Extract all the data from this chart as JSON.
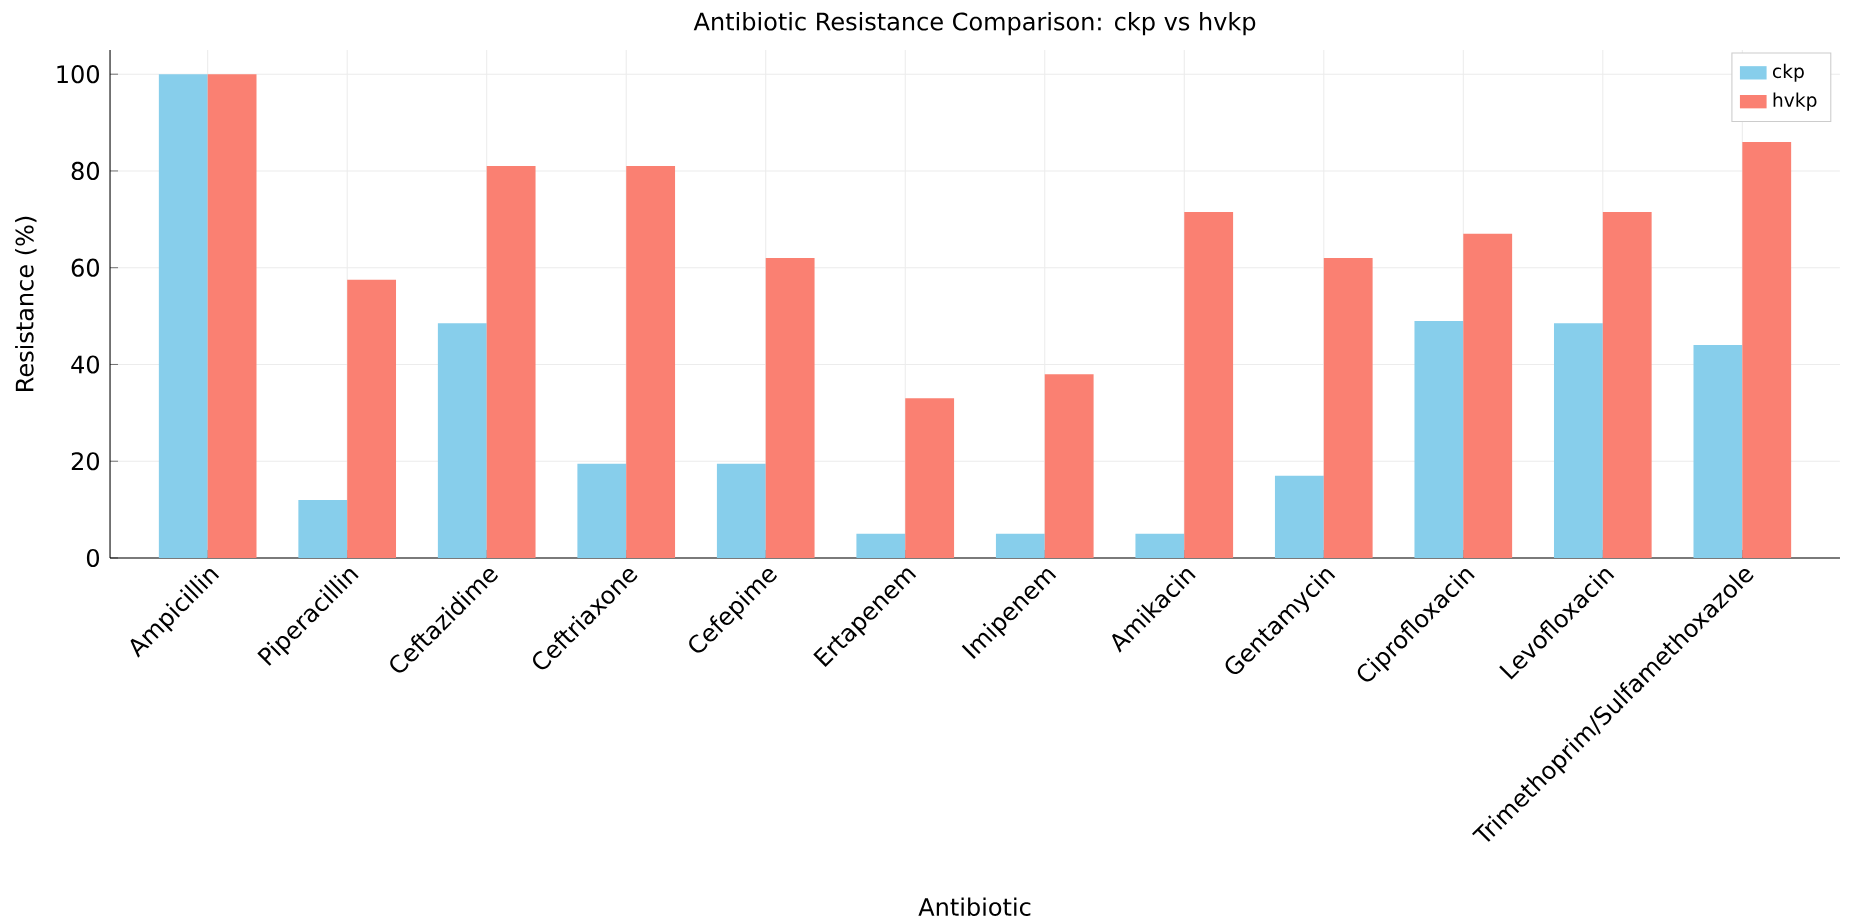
{
  "chart_data": {
    "type": "bar",
    "title": "Antibiotic Resistance Comparison: ckp vs hvkp",
    "xlabel": "Antibiotic",
    "ylabel": "Resistance (%)",
    "categories": [
      "Ampicillin",
      "Piperacillin",
      "Ceftazidime",
      "Ceftriaxone",
      "Cefepime",
      "Ertapenem",
      "Imipenem",
      "Amikacin",
      "Gentamycin",
      "Ciprofloxacin",
      "Levofloxacin",
      "Trimethoprim/Sulfamethoxazole"
    ],
    "series": [
      {
        "name": "ckp",
        "color": "#87ceeb",
        "values": [
          100,
          12,
          48.5,
          19.5,
          19.5,
          5,
          5,
          5,
          17,
          49,
          48.5,
          44
        ]
      },
      {
        "name": "hvkp",
        "color": "#fa8072",
        "values": [
          100,
          57.5,
          81,
          81,
          62,
          33,
          38,
          71.5,
          62,
          67,
          71.5,
          86
        ]
      }
    ],
    "ylim": [
      0,
      105
    ],
    "yticks": [
      0,
      20,
      40,
      60,
      80,
      100
    ],
    "grid": true,
    "legend": "top right"
  }
}
